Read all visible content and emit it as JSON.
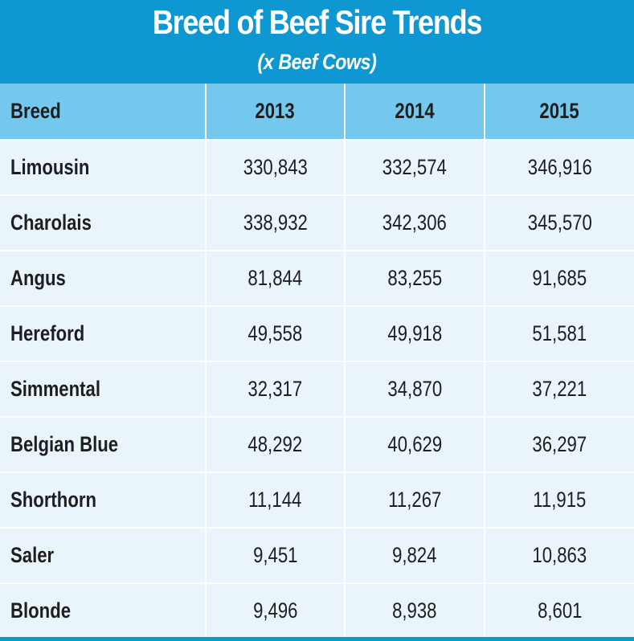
{
  "title": "Breed of Beef Sire Trends",
  "subtitle": "(x Beef Cows)",
  "colors": {
    "title_bar": "#0f97d1",
    "header_row": "#74c8ee",
    "body_row": "#e9f4fb",
    "grid_lines": "#ffffff",
    "text": "#1e1e1e"
  },
  "table": {
    "headers": [
      "Breed",
      "2013",
      "2014",
      "2015"
    ],
    "rows": [
      [
        "Limousin",
        "330,843",
        "332,574",
        "346,916"
      ],
      [
        "Charolais",
        "338,932",
        "342,306",
        "345,570"
      ],
      [
        "Angus",
        "81,844",
        "83,255",
        "91,685"
      ],
      [
        "Hereford",
        "49,558",
        "49,918",
        "51,581"
      ],
      [
        "Simmental",
        "32,317",
        "34,870",
        "37,221"
      ],
      [
        "Belgian Blue",
        "48,292",
        "40,629",
        "36,297"
      ],
      [
        "Shorthorn",
        "11,144",
        "11,267",
        "11,915"
      ],
      [
        "Saler",
        "9,451",
        "9,824",
        "10,863"
      ],
      [
        "Blonde",
        "9,496",
        "8,938",
        "8,601"
      ]
    ]
  }
}
